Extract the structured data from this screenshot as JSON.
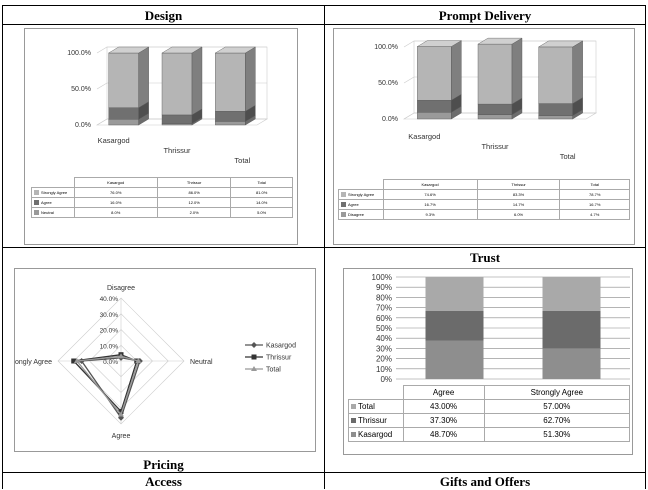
{
  "titles": {
    "design": "Design",
    "prompt": "Prompt Delivery",
    "trust": "Trust",
    "pricing": "Pricing",
    "access": "Access",
    "gifts": "Gifts and Offers"
  },
  "chart_data": [
    {
      "id": "design",
      "type": "bar",
      "title": "Design",
      "categories": [
        "Kasargod",
        "Thrissur",
        "Total"
      ],
      "yticks": [
        "100.0%",
        "50.0%",
        "0.0%"
      ],
      "ylim": [
        0,
        100
      ],
      "series": [
        {
          "name": "Strongly Agree",
          "values": [
            76.0,
            86.0,
            81.0
          ],
          "labels": [
            "76.0%",
            "86.0%",
            "81.0%"
          ]
        },
        {
          "name": "Agree",
          "values": [
            16.0,
            12.0,
            14.0
          ],
          "labels": [
            "16.0%",
            "12.0%",
            "14.0%"
          ]
        },
        {
          "name": "Neutral",
          "values": [
            8.0,
            2.0,
            5.0
          ],
          "labels": [
            "8.0%",
            "2.0%",
            "5.0%"
          ]
        }
      ],
      "colors": {
        "strongly_agree": "#b5b5b5",
        "agree": "#707070",
        "neutral": "#9a9a9a"
      }
    },
    {
      "id": "prompt",
      "type": "bar",
      "title": "Prompt Delivery",
      "categories": [
        "Kasargod",
        "Thrissur",
        "Total"
      ],
      "yticks": [
        "100.0%",
        "50.0%",
        "0.0%"
      ],
      "ylim": [
        0,
        100
      ],
      "series": [
        {
          "name": "Strongly Agree",
          "values": [
            74.6,
            83.3,
            78.7
          ],
          "labels": [
            "74.6%",
            "83.3%",
            "78.7%"
          ]
        },
        {
          "name": "Agree",
          "values": [
            16.7,
            14.7,
            16.7
          ],
          "labels": [
            "16.7%",
            "14.7%",
            "16.7%"
          ]
        },
        {
          "name": "Disagree",
          "values": [
            9.3,
            6.0,
            4.7
          ],
          "labels": [
            "9.3%",
            "6.0%",
            "4.7%"
          ]
        }
      ],
      "colors": {
        "strongly_agree": "#b5b5b5",
        "agree": "#707070",
        "disagree": "#9a9a9a"
      }
    },
    {
      "id": "pricing",
      "type": "radar",
      "title": "Pricing",
      "axes": [
        "Disagree",
        "Neutral",
        "Agree",
        "Strongly Agree"
      ],
      "rticks": [
        "40.0%",
        "30.0%",
        "20.0%",
        "10.0%",
        "0.0%"
      ],
      "rlim": [
        0,
        40
      ],
      "series": [
        {
          "name": "Kasargod",
          "values": [
            2,
            12,
            36,
            25
          ]
        },
        {
          "name": "Thrissur",
          "values": [
            4,
            10,
            32,
            30
          ]
        },
        {
          "name": "Total",
          "values": [
            3,
            11,
            34,
            28
          ]
        }
      ],
      "legend": "right",
      "colors": {
        "kasargod": "#555555",
        "thrissur": "#333333",
        "total": "#999999"
      }
    },
    {
      "id": "trust",
      "type": "bar",
      "title": "Trust",
      "categories": [
        "Agree",
        "Strongly Agree"
      ],
      "yticks": [
        "100%",
        "90%",
        "80%",
        "70%",
        "60%",
        "50%",
        "40%",
        "30%",
        "20%",
        "10%",
        "0%"
      ],
      "ylim": [
        0,
        100
      ],
      "series": [
        {
          "name": "Total",
          "values": [
            43.0,
            57.0
          ],
          "labels": [
            "43.00%",
            "57.00%"
          ]
        },
        {
          "name": "Thrissur",
          "values": [
            37.3,
            62.7
          ],
          "labels": [
            "37.30%",
            "62.70%"
          ]
        },
        {
          "name": "Kasargod",
          "values": [
            48.7,
            51.3
          ],
          "labels": [
            "48.70%",
            "51.30%"
          ]
        }
      ],
      "colors": {
        "total": "#a9a9a9",
        "thrissur": "#6b6b6b",
        "kasargod": "#8e8e8e"
      }
    }
  ]
}
